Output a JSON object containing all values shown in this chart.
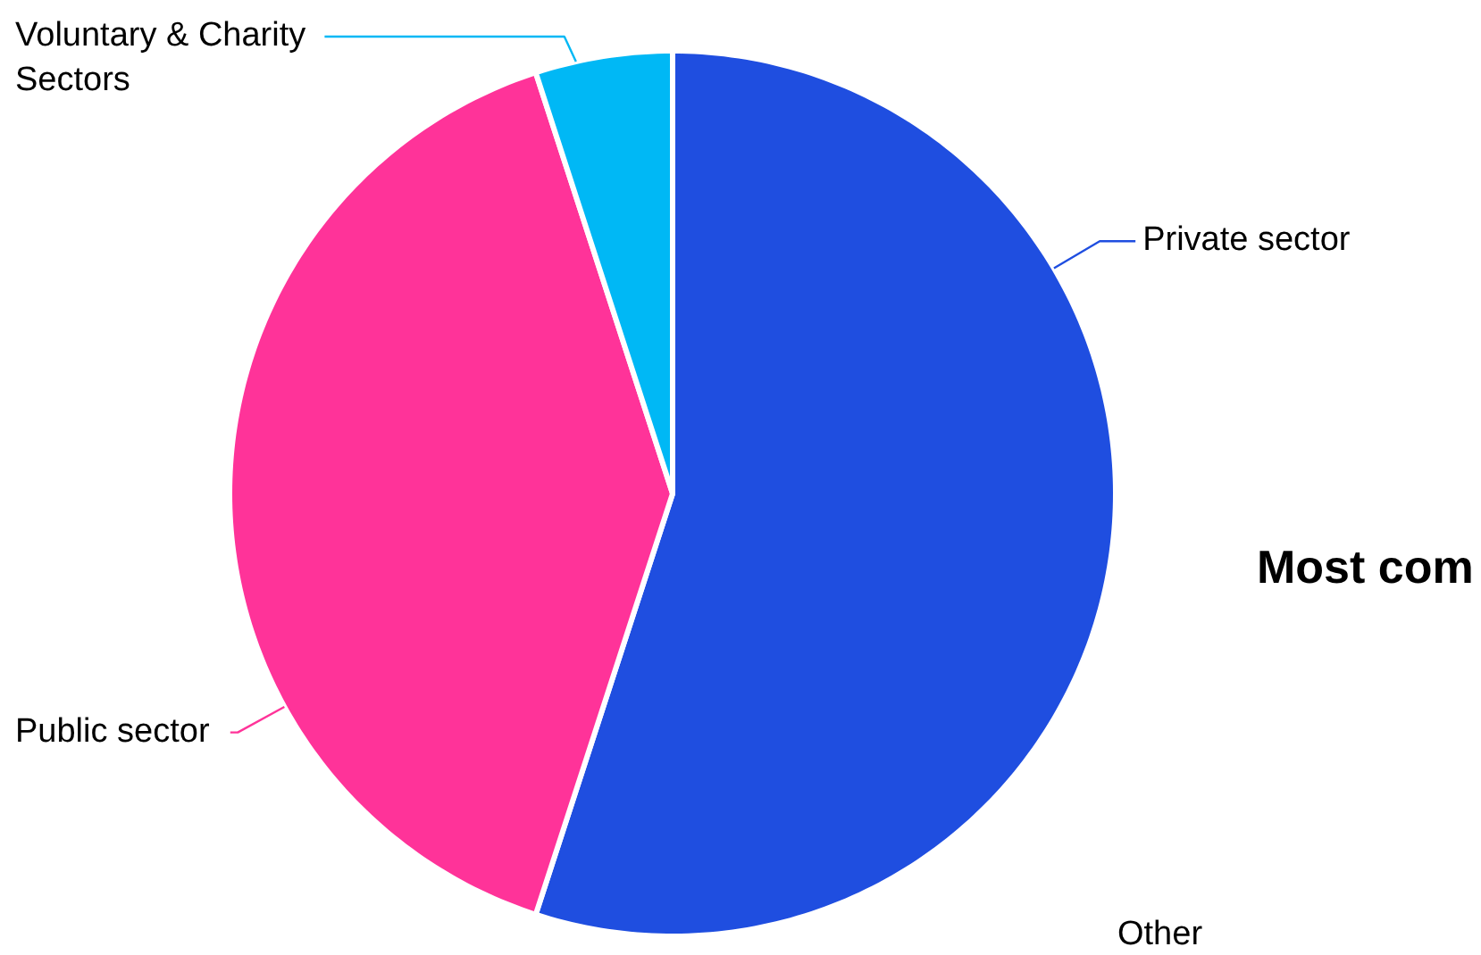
{
  "chart_data": {
    "type": "pie",
    "categories": [
      "Private sector",
      "Public sector",
      "Voluntary & Charity Sectors"
    ],
    "values": [
      55,
      40,
      5
    ],
    "colors": [
      "#1f4ee0",
      "#ff3399",
      "#00b8f5"
    ],
    "annotations": [
      "Most com",
      "Other"
    ]
  }
}
